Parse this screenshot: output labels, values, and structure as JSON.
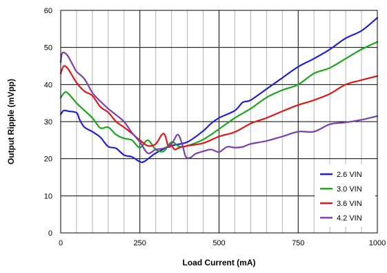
{
  "chart_data": {
    "type": "line",
    "title": "",
    "xlabel": "Load Current (mA)",
    "ylabel": "Output Ripple (mVpp)",
    "xlim": [
      0,
      1000
    ],
    "ylim": [
      0,
      60
    ],
    "x_ticks": [
      0,
      250,
      500,
      750,
      1000
    ],
    "y_ticks": [
      0,
      10,
      20,
      30,
      40,
      50,
      60
    ],
    "minor_x_step": 50,
    "grid": true,
    "legend": "bottom-right",
    "series": [
      {
        "name": "2.6 VIN",
        "color": "#1f1fd6",
        "points": [
          [
            0,
            32
          ],
          [
            10,
            33
          ],
          [
            25,
            32.8
          ],
          [
            50,
            32.4
          ],
          [
            60,
            30.5
          ],
          [
            75,
            28.5
          ],
          [
            100,
            27.3
          ],
          [
            125,
            25.8
          ],
          [
            150,
            23.3
          ],
          [
            175,
            22.8
          ],
          [
            200,
            21.0
          ],
          [
            225,
            20.5
          ],
          [
            250,
            19.2
          ],
          [
            265,
            19.3
          ],
          [
            300,
            21.5
          ],
          [
            350,
            23.5
          ],
          [
            400,
            24.5
          ],
          [
            450,
            27.5
          ],
          [
            475,
            29.5
          ],
          [
            500,
            31.0
          ],
          [
            550,
            33.0
          ],
          [
            575,
            35.2
          ],
          [
            600,
            35.8
          ],
          [
            650,
            38.8
          ],
          [
            700,
            41.8
          ],
          [
            750,
            44.8
          ],
          [
            800,
            47.0
          ],
          [
            850,
            49.5
          ],
          [
            900,
            52.5
          ],
          [
            950,
            54.5
          ],
          [
            1000,
            58.0
          ]
        ]
      },
      {
        "name": "3.0 VIN",
        "color": "#1aa51a",
        "points": [
          [
            0,
            36.5
          ],
          [
            15,
            38
          ],
          [
            30,
            37
          ],
          [
            50,
            35
          ],
          [
            75,
            33
          ],
          [
            100,
            31
          ],
          [
            125,
            28.3
          ],
          [
            150,
            28.5
          ],
          [
            175,
            26.5
          ],
          [
            200,
            25.5
          ],
          [
            225,
            25.0
          ],
          [
            250,
            23.0
          ],
          [
            275,
            25.0
          ],
          [
            300,
            22.5
          ],
          [
            325,
            22.0
          ],
          [
            350,
            24.5
          ],
          [
            375,
            23.3
          ],
          [
            400,
            23.5
          ],
          [
            450,
            25.2
          ],
          [
            500,
            28.0
          ],
          [
            550,
            31.0
          ],
          [
            600,
            33.5
          ],
          [
            650,
            36.5
          ],
          [
            700,
            38.5
          ],
          [
            750,
            40.0
          ],
          [
            800,
            43.0
          ],
          [
            850,
            44.5
          ],
          [
            900,
            47.0
          ],
          [
            950,
            49.5
          ],
          [
            1000,
            51.5
          ]
        ]
      },
      {
        "name": "3.6 VIN",
        "color": "#e01515",
        "points": [
          [
            0,
            43
          ],
          [
            10,
            45
          ],
          [
            25,
            44
          ],
          [
            50,
            40.5
          ],
          [
            75,
            38.2
          ],
          [
            100,
            37
          ],
          [
            125,
            34
          ],
          [
            150,
            32.5
          ],
          [
            175,
            30
          ],
          [
            200,
            28.5
          ],
          [
            225,
            26.8
          ],
          [
            250,
            25.0
          ],
          [
            275,
            23.5
          ],
          [
            300,
            24.0
          ],
          [
            325,
            26.8
          ],
          [
            340,
            23.3
          ],
          [
            350,
            23.5
          ],
          [
            360,
            22.5
          ],
          [
            375,
            23.0
          ],
          [
            400,
            23.5
          ],
          [
            450,
            24.2
          ],
          [
            500,
            26.0
          ],
          [
            550,
            27.2
          ],
          [
            600,
            29.5
          ],
          [
            650,
            31.0
          ],
          [
            700,
            32.8
          ],
          [
            750,
            34.5
          ],
          [
            800,
            35.8
          ],
          [
            850,
            37.5
          ],
          [
            900,
            40.0
          ],
          [
            950,
            41.2
          ],
          [
            1000,
            42.3
          ]
        ]
      },
      {
        "name": "4.2 VIN",
        "color": "#7a3fa8",
        "points": [
          [
            0,
            46
          ],
          [
            5,
            48.5
          ],
          [
            20,
            48
          ],
          [
            40,
            45
          ],
          [
            50,
            43.5
          ],
          [
            75,
            41.5
          ],
          [
            100,
            37.8
          ],
          [
            125,
            35.5
          ],
          [
            150,
            33.5
          ],
          [
            175,
            31.8
          ],
          [
            200,
            30.0
          ],
          [
            225,
            27.0
          ],
          [
            250,
            24.5
          ],
          [
            275,
            21.5
          ],
          [
            300,
            22.5
          ],
          [
            325,
            22.8
          ],
          [
            350,
            24.0
          ],
          [
            370,
            26.5
          ],
          [
            385,
            23.5
          ],
          [
            395,
            20.5
          ],
          [
            410,
            20.3
          ],
          [
            425,
            21.3
          ],
          [
            450,
            22.0
          ],
          [
            475,
            22.5
          ],
          [
            500,
            21.8
          ],
          [
            525,
            23.2
          ],
          [
            550,
            23.0
          ],
          [
            575,
            23.2
          ],
          [
            600,
            24.0
          ],
          [
            650,
            24.8
          ],
          [
            700,
            26.0
          ],
          [
            750,
            27.3
          ],
          [
            800,
            27.3
          ],
          [
            850,
            29.3
          ],
          [
            900,
            29.8
          ],
          [
            950,
            30.5
          ],
          [
            1000,
            31.5
          ]
        ]
      }
    ]
  }
}
